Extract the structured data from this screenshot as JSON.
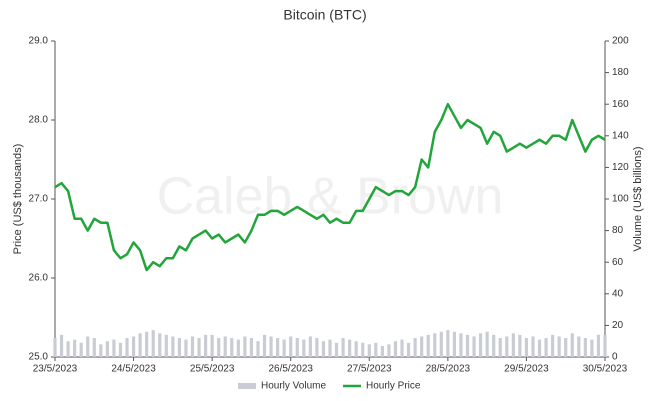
{
  "chart_data": {
    "type": "line",
    "title": "Bitcoin (BTC)",
    "watermark": "Caleb & Brown",
    "ylabel": "Price (US$ thousands)",
    "y2label": "Volume (US$ billions)",
    "categories": [
      "23/5/2023",
      null,
      null,
      null,
      null,
      null,
      null,
      null,
      null,
      null,
      null,
      null,
      "24/5/2023",
      null,
      null,
      null,
      null,
      null,
      null,
      null,
      null,
      null,
      null,
      null,
      "25/5/2023",
      null,
      null,
      null,
      null,
      null,
      null,
      null,
      null,
      null,
      null,
      null,
      "26/5/2023",
      null,
      null,
      null,
      null,
      null,
      null,
      null,
      null,
      null,
      null,
      null,
      "27/5/2023",
      null,
      null,
      null,
      null,
      null,
      null,
      null,
      null,
      null,
      null,
      null,
      "28/5/2023",
      null,
      null,
      null,
      null,
      null,
      null,
      null,
      null,
      null,
      null,
      null,
      "29/5/2023",
      null,
      null,
      null,
      null,
      null,
      null,
      null,
      null,
      null,
      null,
      null,
      "30/5/2023"
    ],
    "series": [
      {
        "name": "Hourly Volume",
        "type": "bar",
        "axis": "y2",
        "color": "#c9cdd3",
        "values": [
          12,
          14,
          10,
          11,
          9,
          13,
          12,
          8,
          10,
          11,
          9,
          12,
          13,
          15,
          16,
          17,
          15,
          14,
          13,
          12,
          11,
          13,
          12,
          14,
          14,
          12,
          13,
          12,
          11,
          13,
          12,
          10,
          14,
          13,
          12,
          11,
          13,
          12,
          11,
          13,
          12,
          10,
          11,
          9,
          12,
          11,
          10,
          9,
          8,
          9,
          7,
          8,
          10,
          11,
          9,
          12,
          13,
          14,
          15,
          16,
          17,
          16,
          15,
          14,
          13,
          15,
          16,
          14,
          12,
          13,
          15,
          14,
          12,
          13,
          11,
          12,
          14,
          13,
          12,
          15,
          13,
          12,
          11,
          14,
          14
        ]
      },
      {
        "name": "Hourly Price",
        "type": "line",
        "color": "#22a53a",
        "values": [
          27.15,
          27.2,
          27.1,
          26.75,
          26.75,
          26.6,
          26.75,
          26.7,
          26.7,
          26.35,
          26.25,
          26.3,
          26.45,
          26.35,
          26.1,
          26.2,
          26.15,
          26.25,
          26.25,
          26.4,
          26.35,
          26.5,
          26.55,
          26.6,
          26.5,
          26.55,
          26.45,
          26.5,
          26.55,
          26.45,
          26.6,
          26.8,
          26.8,
          26.85,
          26.85,
          26.8,
          26.85,
          26.9,
          26.85,
          26.8,
          26.75,
          26.8,
          26.7,
          26.75,
          26.7,
          26.7,
          26.85,
          26.85,
          27.0,
          27.15,
          27.1,
          27.05,
          27.1,
          27.1,
          27.05,
          27.15,
          27.5,
          27.4,
          27.85,
          28.0,
          28.2,
          28.05,
          27.9,
          28.0,
          27.95,
          27.9,
          27.7,
          27.85,
          27.8,
          27.6,
          27.65,
          27.7,
          27.65,
          27.7,
          27.75,
          27.7,
          27.8,
          27.8,
          27.75,
          28.0,
          27.8,
          27.6,
          27.75,
          27.8,
          27.75
        ]
      }
    ],
    "ylim": [
      25,
      29
    ],
    "yticks": [
      {
        "value": 25,
        "label": "25.0"
      },
      {
        "value": 26,
        "label": "26.0"
      },
      {
        "value": 27,
        "label": "27.0"
      },
      {
        "value": 28,
        "label": "28.0"
      },
      {
        "value": 29,
        "label": "29.0"
      }
    ],
    "y2lim": [
      0,
      200
    ],
    "y2ticks": [
      0,
      20,
      40,
      60,
      80,
      100,
      120,
      140,
      160,
      180,
      200
    ],
    "legend": "bottom"
  }
}
